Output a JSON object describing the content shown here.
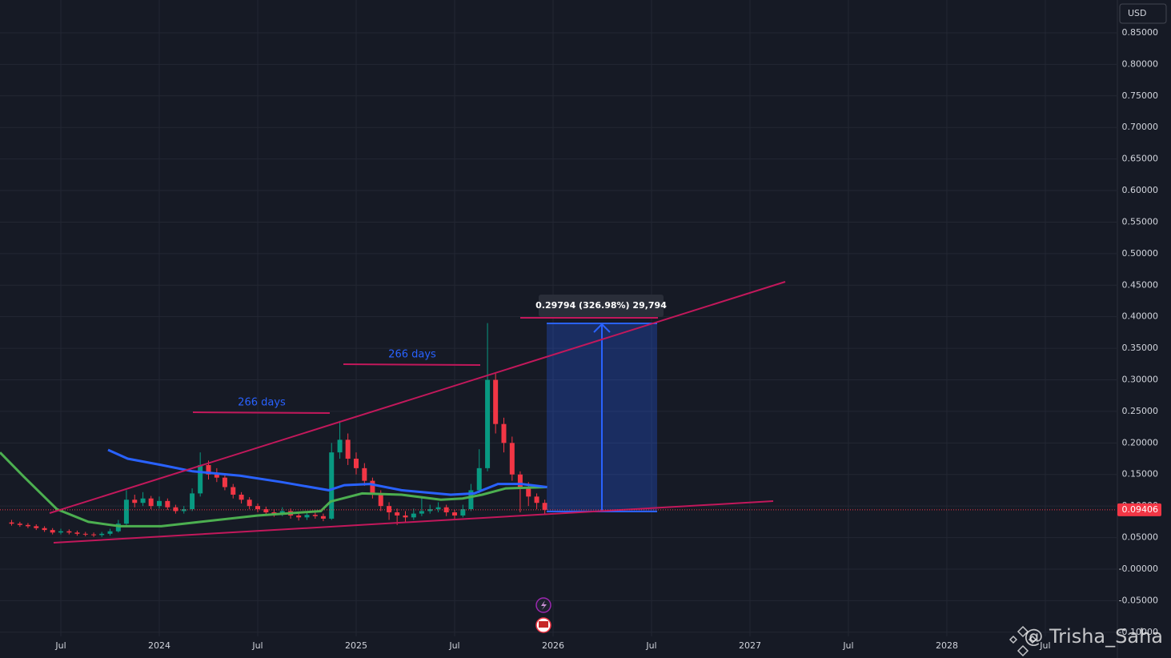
{
  "chart_data": {
    "type": "candlestick",
    "currency": "USD",
    "watermark": "@ Trisha_Saha",
    "x": [
      2023.25,
      2023.292,
      2023.333,
      2023.375,
      2023.417,
      2023.458,
      2023.5,
      2023.542,
      2023.583,
      2023.625,
      2023.667,
      2023.708,
      2023.75,
      2023.792,
      2023.833,
      2023.875,
      2023.917,
      2023.958,
      2024.0,
      2024.042,
      2024.083,
      2024.125,
      2024.167,
      2024.208,
      2024.25,
      2024.292,
      2024.333,
      2024.375,
      2024.417,
      2024.458,
      2024.5,
      2024.542,
      2024.583,
      2024.625,
      2024.667,
      2024.708,
      2024.75,
      2024.792,
      2024.833,
      2024.875,
      2024.917,
      2024.958,
      2025.0,
      2025.042,
      2025.083,
      2025.125,
      2025.167,
      2025.208,
      2025.25,
      2025.292,
      2025.333,
      2025.375,
      2025.417,
      2025.458,
      2025.5,
      2025.542,
      2025.583,
      2025.625,
      2025.667,
      2025.708,
      2025.75,
      2025.792,
      2025.833,
      2025.875,
      2025.917,
      2025.958
    ],
    "open": [
      0.074,
      0.072,
      0.07,
      0.068,
      0.065,
      0.062,
      0.058,
      0.06,
      0.058,
      0.056,
      0.055,
      0.054,
      0.056,
      0.06,
      0.072,
      0.11,
      0.105,
      0.112,
      0.1,
      0.108,
      0.098,
      0.092,
      0.095,
      0.12,
      0.165,
      0.15,
      0.145,
      0.13,
      0.118,
      0.11,
      0.1,
      0.095,
      0.09,
      0.088,
      0.092,
      0.085,
      0.082,
      0.086,
      0.084,
      0.08,
      0.185,
      0.205,
      0.175,
      0.16,
      0.14,
      0.12,
      0.1,
      0.09,
      0.085,
      0.082,
      0.088,
      0.092,
      0.095,
      0.098,
      0.09,
      0.085,
      0.095,
      0.125,
      0.16,
      0.3,
      0.23,
      0.2,
      0.15,
      0.13,
      0.115,
      0.105
    ],
    "high": [
      0.078,
      0.075,
      0.073,
      0.071,
      0.068,
      0.065,
      0.064,
      0.063,
      0.061,
      0.059,
      0.058,
      0.059,
      0.064,
      0.078,
      0.125,
      0.118,
      0.122,
      0.116,
      0.115,
      0.112,
      0.102,
      0.1,
      0.128,
      0.185,
      0.172,
      0.16,
      0.15,
      0.135,
      0.122,
      0.114,
      0.104,
      0.099,
      0.095,
      0.098,
      0.096,
      0.089,
      0.091,
      0.09,
      0.088,
      0.2,
      0.235,
      0.215,
      0.185,
      0.168,
      0.145,
      0.125,
      0.106,
      0.096,
      0.092,
      0.096,
      0.115,
      0.102,
      0.106,
      0.102,
      0.094,
      0.102,
      0.135,
      0.19,
      0.39,
      0.31,
      0.24,
      0.21,
      0.155,
      0.138,
      0.12,
      0.11
    ],
    "low": [
      0.069,
      0.067,
      0.065,
      0.062,
      0.059,
      0.055,
      0.055,
      0.055,
      0.053,
      0.052,
      0.051,
      0.051,
      0.053,
      0.058,
      0.07,
      0.098,
      0.1,
      0.095,
      0.096,
      0.094,
      0.088,
      0.088,
      0.092,
      0.115,
      0.142,
      0.138,
      0.125,
      0.112,
      0.104,
      0.095,
      0.09,
      0.085,
      0.083,
      0.084,
      0.08,
      0.077,
      0.078,
      0.08,
      0.076,
      0.078,
      0.175,
      0.165,
      0.15,
      0.132,
      0.112,
      0.092,
      0.078,
      0.07,
      0.074,
      0.078,
      0.084,
      0.088,
      0.09,
      0.084,
      0.078,
      0.082,
      0.092,
      0.12,
      0.155,
      0.215,
      0.185,
      0.14,
      0.09,
      0.1,
      0.095,
      0.088
    ],
    "close": [
      0.072,
      0.07,
      0.068,
      0.065,
      0.062,
      0.058,
      0.06,
      0.058,
      0.056,
      0.055,
      0.054,
      0.056,
      0.06,
      0.072,
      0.11,
      0.105,
      0.112,
      0.1,
      0.108,
      0.098,
      0.092,
      0.095,
      0.12,
      0.165,
      0.15,
      0.145,
      0.13,
      0.118,
      0.11,
      0.1,
      0.095,
      0.09,
      0.088,
      0.092,
      0.085,
      0.082,
      0.086,
      0.084,
      0.08,
      0.185,
      0.205,
      0.175,
      0.16,
      0.14,
      0.12,
      0.1,
      0.09,
      0.085,
      0.082,
      0.088,
      0.092,
      0.095,
      0.098,
      0.09,
      0.085,
      0.095,
      0.125,
      0.16,
      0.3,
      0.23,
      0.2,
      0.15,
      0.13,
      0.115,
      0.105,
      0.094
    ],
    "up_color": "#089981",
    "down_color": "#f23645",
    "overlays": [
      {
        "color": "#4caf50",
        "x": [
          2023.191,
          2023.31,
          2023.48,
          2023.64,
          2023.8,
          2024.01,
          2024.21,
          2024.5,
          2024.82,
          2024.87,
          2025.03,
          2025.23,
          2025.43,
          2025.54,
          2025.64,
          2025.76,
          2025.97
        ],
        "values": [
          0.185,
          0.147,
          0.095,
          0.075,
          0.068,
          0.068,
          0.075,
          0.085,
          0.092,
          0.107,
          0.12,
          0.118,
          0.11,
          0.112,
          0.118,
          0.128,
          0.13
        ]
      },
      {
        "color": "#2962ff",
        "x": [
          2023.74,
          2023.84,
          2024.01,
          2024.17,
          2024.41,
          2024.62,
          2024.86,
          2024.94,
          2025.07,
          2025.23,
          2025.48,
          2025.6,
          2025.72,
          2025.84,
          2025.97
        ],
        "values": [
          0.189,
          0.175,
          0.165,
          0.155,
          0.148,
          0.138,
          0.125,
          0.133,
          0.135,
          0.125,
          0.118,
          0.12,
          0.135,
          0.135,
          0.13
        ]
      }
    ],
    "last_price": 0.09406,
    "last_price_color": "#f23645",
    "annotations": [
      "266 days",
      "266 days",
      "0.29794 (326.98%) 29,794"
    ],
    "xlim": [
      2023.191,
      2028.862
    ],
    "ylim": [
      -0.1066,
      0.902
    ],
    "xticks": [
      {
        "value": 2023.5,
        "label": "Jul"
      },
      2024,
      {
        "value": 2024.5,
        "label": "Jul"
      },
      2025,
      {
        "value": 2025.5,
        "label": "Jul"
      },
      2026,
      {
        "value": 2026.5,
        "label": "Jul"
      },
      2027,
      {
        "value": 2027.5,
        "label": "Jul"
      },
      2028,
      {
        "value": 2028.5,
        "label": "Jul"
      }
    ],
    "yticks": [
      {
        "value": 0.85,
        "label": "0.85000"
      },
      {
        "value": 0.8,
        "label": "0.80000"
      },
      {
        "value": 0.75,
        "label": "0.75000"
      },
      {
        "value": 0.7,
        "label": "0.70000"
      },
      {
        "value": 0.65,
        "label": "0.65000"
      },
      {
        "value": 0.6,
        "label": "0.60000"
      },
      {
        "value": 0.55,
        "label": "0.55000"
      },
      {
        "value": 0.5,
        "label": "0.50000"
      },
      {
        "value": 0.45,
        "label": "0.45000"
      },
      {
        "value": 0.4,
        "label": "0.40000"
      },
      {
        "value": 0.35,
        "label": "0.35000"
      },
      {
        "value": 0.3,
        "label": "0.30000"
      },
      {
        "value": 0.25,
        "label": "0.25000"
      },
      {
        "value": 0.2,
        "label": "0.20000"
      },
      {
        "value": 0.15,
        "label": "0.15000"
      },
      {
        "value": 0.1,
        "label": "0.10000"
      },
      {
        "value": 0.05,
        "label": "0.05000"
      },
      {
        "value": 0,
        "label": "-0.00000"
      },
      {
        "value": -0.05,
        "label": "-0.05000"
      },
      {
        "value": -0.1,
        "label": "-0.10000"
      }
    ],
    "grid": true
  }
}
